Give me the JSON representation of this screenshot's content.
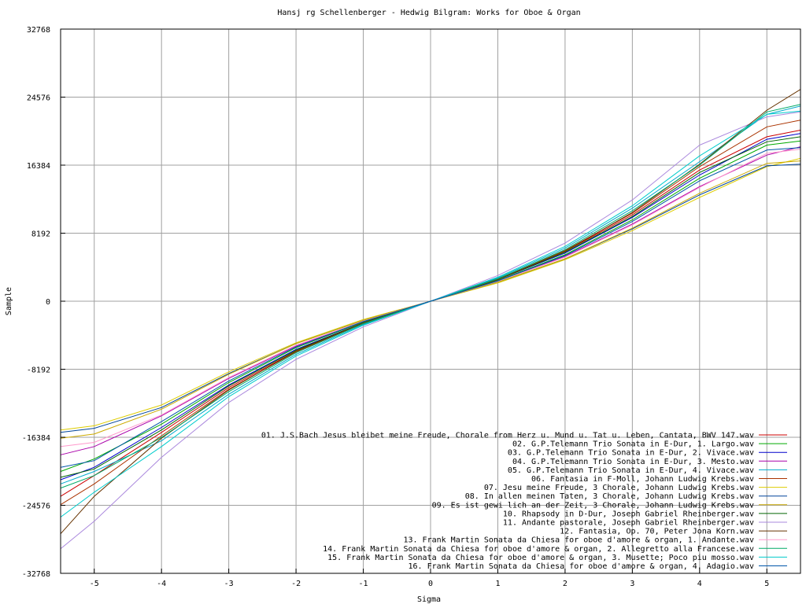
{
  "chart_data": {
    "type": "line",
    "title": "Hansj rg Schellenberger - Hedwig Bilgram: Works for Oboe & Organ",
    "xlabel": "Sigma",
    "ylabel": "Sample",
    "xlim": [
      -5.5,
      5.5
    ],
    "ylim": [
      -32768,
      32768
    ],
    "xticks": [
      -5,
      -4,
      -3,
      -2,
      -1,
      0,
      1,
      2,
      3,
      4,
      5
    ],
    "yticks": [
      -32768,
      -24576,
      -16384,
      -8192,
      0,
      8192,
      16384,
      24576,
      32768
    ],
    "xtick_labels": [
      "-5",
      "-4",
      "-3",
      "-2",
      "-1",
      "0",
      "1",
      "2",
      "3",
      "4",
      "5"
    ],
    "ytick_labels": [
      "-32768",
      "-24576",
      "-16384",
      "-8192",
      "0",
      "8192",
      "16384",
      "24576",
      "32768"
    ],
    "grid": true,
    "legend_position": "bottom-right",
    "series": [
      {
        "name": "01. J.S.Bach Jesus bleibet meine Freude, Chorale from Herz u. Mund u. Tat u. Leben, Cantata, BWV 147.wav",
        "color": "#cc0000",
        "x": [
          -5.5,
          -5,
          -4,
          -3,
          -2,
          -1,
          0,
          1,
          2,
          3,
          4,
          5,
          5.5
        ],
        "y": [
          -23500,
          -21000,
          -15800,
          -10400,
          -6000,
          -2700,
          0,
          2700,
          6000,
          10400,
          15800,
          19800,
          20600
        ]
      },
      {
        "name": "02. G.P.Telemann Trio Sonata in E-Dur, 1. Largo.wav",
        "color": "#00aa00",
        "x": [
          -5.5,
          -5,
          -4,
          -3,
          -2,
          -1,
          0,
          1,
          2,
          3,
          4,
          5,
          5.5
        ],
        "y": [
          -20500,
          -19000,
          -14800,
          -9800,
          -5600,
          -2500,
          0,
          2500,
          5600,
          9800,
          14800,
          18800,
          19300
        ]
      },
      {
        "name": "03. G.P.Telemann Trio Sonata in E-Dur, 2. Vivace.wav",
        "color": "#0000cc",
        "x": [
          -5.5,
          -5,
          -4,
          -3,
          -2,
          -1,
          0,
          1,
          2,
          3,
          4,
          5,
          5.5
        ],
        "y": [
          -21500,
          -20000,
          -15200,
          -10100,
          -5800,
          -2600,
          0,
          2600,
          5800,
          10100,
          15200,
          19500,
          20200
        ]
      },
      {
        "name": "04. G.P.Telemann Trio Sonata in E-Dur, 3. Mesto.wav",
        "color": "#aa00aa",
        "x": [
          -5.5,
          -5,
          -4,
          -3,
          -2,
          -1,
          0,
          1,
          2,
          3,
          4,
          5,
          5.5
        ],
        "y": [
          -18500,
          -17500,
          -13800,
          -9300,
          -5400,
          -2400,
          0,
          2400,
          5400,
          9300,
          13800,
          17600,
          18600
        ]
      },
      {
        "name": "05. G.P.Telemann Trio Sonata in E-Dur, 4. Vivace.wav",
        "color": "#00aacc",
        "x": [
          -5.5,
          -5,
          -4,
          -3,
          -2,
          -1,
          0,
          1,
          2,
          3,
          4,
          5,
          5.5
        ],
        "y": [
          -22000,
          -20500,
          -16800,
          -11200,
          -6400,
          -2800,
          0,
          2800,
          6400,
          11200,
          16800,
          22500,
          23500
        ]
      },
      {
        "name": "06. Fantasia in F-Moll, Johann Ludwig Krebs.wav",
        "color": "#aa3300",
        "x": [
          -5.5,
          -5,
          -4,
          -3,
          -2,
          -1,
          0,
          1,
          2,
          3,
          4,
          5,
          5.5
        ],
        "y": [
          -24500,
          -22000,
          -16200,
          -10600,
          -6100,
          -2700,
          0,
          2700,
          6100,
          10600,
          16200,
          21000,
          21800
        ]
      },
      {
        "name": "07. Jesu meine Freude, 3 Chorale, Johann Ludwig Krebs.wav",
        "color": "#ddcc00",
        "x": [
          -5.5,
          -5,
          -4,
          -3,
          -2,
          -1,
          0,
          1,
          2,
          3,
          4,
          5,
          5.5
        ],
        "y": [
          -15500,
          -15000,
          -12500,
          -8500,
          -5000,
          -2200,
          0,
          2200,
          5000,
          8500,
          12500,
          16200,
          17200
        ]
      },
      {
        "name": "08. In allen meinen Taten, 3 Chorale, Johann Ludwig Krebs.wav",
        "color": "#004499",
        "x": [
          -5.5,
          -5,
          -4,
          -3,
          -2,
          -1,
          0,
          1,
          2,
          3,
          4,
          5,
          5.5
        ],
        "y": [
          -15800,
          -15300,
          -12800,
          -8700,
          -5100,
          -2300,
          0,
          2300,
          5100,
          8700,
          12800,
          16300,
          16500
        ]
      },
      {
        "name": "09. Es ist gewi lich an der Zeit, 3 Chorale, Johann Ludwig Krebs.wav",
        "color": "#ccaa00",
        "x": [
          -5.5,
          -5,
          -4,
          -3,
          -2,
          -1,
          0,
          1,
          2,
          3,
          4,
          5,
          5.5
        ],
        "y": [
          -16500,
          -16000,
          -13000,
          -8800,
          -5100,
          -2300,
          0,
          2300,
          5100,
          8800,
          13000,
          16600,
          16900
        ]
      },
      {
        "name": "10. Rhapsody in D-Dur, Joseph Gabriel Rheinberger.wav",
        "color": "#006600",
        "x": [
          -5.5,
          -5,
          -4,
          -3,
          -2,
          -1,
          0,
          1,
          2,
          3,
          4,
          5,
          5.5
        ],
        "y": [
          -21200,
          -20200,
          -15500,
          -10200,
          -5900,
          -2600,
          0,
          2600,
          5900,
          10200,
          15500,
          19200,
          19800
        ]
      },
      {
        "name": "11. Andante pastorale, Joseph Gabriel Rheinberger.wav",
        "color": "#aa88dd",
        "x": [
          -5.5,
          -5,
          -4,
          -3,
          -2,
          -1,
          0,
          1,
          2,
          3,
          4,
          5,
          5.5
        ],
        "y": [
          -29800,
          -26500,
          -18800,
          -12200,
          -7000,
          -3100,
          0,
          3100,
          7000,
          12200,
          18800,
          22200,
          22800
        ]
      },
      {
        "name": "12. Fantasia, Op. 70, Peter Jona Korn.wav",
        "color": "#663300",
        "x": [
          -5.5,
          -5,
          -4,
          -3,
          -2,
          -1,
          0,
          1,
          2,
          3,
          4,
          5,
          5.5
        ],
        "y": [
          -28000,
          -23500,
          -16500,
          -10700,
          -6000,
          -2600,
          0,
          2600,
          6000,
          10700,
          16500,
          23000,
          25500
        ]
      },
      {
        "name": "13. Frank Martin Sonata da Chiesa for oboe d'amore & organ, 1. Andante.wav",
        "color": "#ff99cc",
        "x": [
          -5.5,
          -5,
          -4,
          -3,
          -2,
          -1,
          0,
          1,
          2,
          3,
          4,
          5,
          5.5
        ],
        "y": [
          -17500,
          -17000,
          -13700,
          -9200,
          -5300,
          -2400,
          0,
          2400,
          5300,
          9200,
          13700,
          17800,
          18300
        ]
      },
      {
        "name": "14. Frank Martin Sonata da Chiesa for oboe d'amore & organ, 2. Allegretto alla Francese.wav",
        "color": "#00aa66",
        "x": [
          -5.5,
          -5,
          -4,
          -3,
          -2,
          -1,
          0,
          1,
          2,
          3,
          4,
          5,
          5.5
        ],
        "y": [
          -22500,
          -21000,
          -16400,
          -10900,
          -6200,
          -2700,
          0,
          2700,
          6200,
          10900,
          16400,
          22800,
          23700
        ]
      },
      {
        "name": "15. Frank Martin Sonata da Chiesa for oboe d'amore & organ, 3. Musette; Poco piu mosso.wav",
        "color": "#00cccc",
        "x": [
          -5.5,
          -5,
          -4,
          -3,
          -2,
          -1,
          0,
          1,
          2,
          3,
          4,
          5,
          5.5
        ],
        "y": [
          -26000,
          -23000,
          -17500,
          -11500,
          -6600,
          -2900,
          0,
          2900,
          6600,
          11500,
          17500,
          22500,
          22900
        ]
      },
      {
        "name": "16. Frank Martin Sonata da Chiesa for oboe d'amore & organ, 4. Adagio.wav",
        "color": "#0055aa",
        "x": [
          -5.5,
          -5,
          -4,
          -3,
          -2,
          -1,
          0,
          1,
          2,
          3,
          4,
          5,
          5.5
        ],
        "y": [
          -20000,
          -19200,
          -14500,
          -9600,
          -5500,
          -2450,
          0,
          2450,
          5500,
          9600,
          14500,
          18200,
          18500
        ]
      }
    ]
  }
}
